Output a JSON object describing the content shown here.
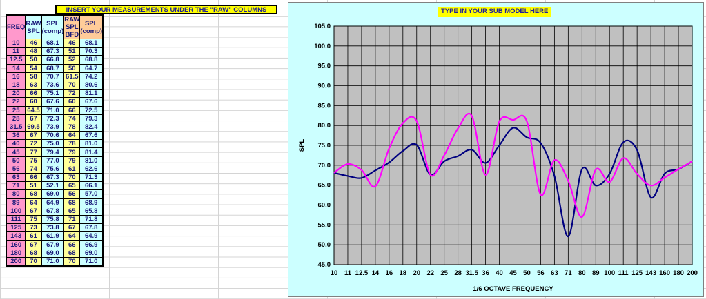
{
  "table": {
    "banner": "INSERT YOUR MEASUREMENTS UNDER THE \"RAW\" COLUMNS",
    "headers": [
      "FREQ",
      "RAW SPL",
      "SPL (comp)",
      "RAW SPL BFD",
      "SPL (comp)"
    ],
    "rows": [
      [
        "10",
        "46",
        "68.1",
        "46",
        "68.1"
      ],
      [
        "11",
        "48",
        "67.3",
        "51",
        "70.3"
      ],
      [
        "12.5",
        "50",
        "66.8",
        "52",
        "68.8"
      ],
      [
        "14",
        "54",
        "68.7",
        "50",
        "64.7"
      ],
      [
        "16",
        "58",
        "70.7",
        "61.5",
        "74.2"
      ],
      [
        "18",
        "63",
        "73.6",
        "70",
        "80.6"
      ],
      [
        "20",
        "66",
        "75.1",
        "72",
        "81.1"
      ],
      [
        "22",
        "60",
        "67.6",
        "60",
        "67.6"
      ],
      [
        "25",
        "64.5",
        "71.0",
        "66",
        "72.5"
      ],
      [
        "28",
        "67",
        "72.3",
        "74",
        "79.3"
      ],
      [
        "31.5",
        "69.5",
        "73.9",
        "78",
        "82.4"
      ],
      [
        "36",
        "67",
        "70.6",
        "64",
        "67.6"
      ],
      [
        "40",
        "72",
        "75.0",
        "78",
        "81.0"
      ],
      [
        "45",
        "77",
        "79.4",
        "79",
        "81.4"
      ],
      [
        "50",
        "75",
        "77.0",
        "79",
        "81.0"
      ],
      [
        "56",
        "74",
        "75.6",
        "61",
        "62.6"
      ],
      [
        "63",
        "66",
        "67.3",
        "70",
        "71.3"
      ],
      [
        "71",
        "51",
        "52.1",
        "65",
        "66.1"
      ],
      [
        "80",
        "68",
        "69.0",
        "56",
        "57.0"
      ],
      [
        "89",
        "64",
        "64.9",
        "68",
        "68.9"
      ],
      [
        "100",
        "67",
        "67.8",
        "65",
        "65.8"
      ],
      [
        "111",
        "75",
        "75.8",
        "71",
        "71.8"
      ],
      [
        "125",
        "73",
        "73.8",
        "67",
        "67.8"
      ],
      [
        "143",
        "61",
        "61.9",
        "64",
        "64.9"
      ],
      [
        "160",
        "67",
        "67.9",
        "66",
        "66.9"
      ],
      [
        "180",
        "68",
        "69.0",
        "68",
        "69.0"
      ],
      [
        "200",
        "70",
        "71.0",
        "70",
        "71.0"
      ]
    ]
  },
  "chart_data": {
    "type": "line",
    "title": "TYPE IN YOUR SUB MODEL HERE",
    "xlabel": "1/6 OCTAVE FREQUENCY",
    "ylabel": "SPL",
    "categories": [
      "10",
      "11",
      "12.5",
      "14",
      "16",
      "18",
      "20",
      "22",
      "25",
      "28",
      "31.5",
      "36",
      "40",
      "45",
      "50",
      "56",
      "63",
      "71",
      "80",
      "89",
      "100",
      "111",
      "125",
      "143",
      "160",
      "180",
      "200"
    ],
    "ylim": [
      45,
      105
    ],
    "yticks": [
      "45.0",
      "50.0",
      "55.0",
      "60.0",
      "65.0",
      "70.0",
      "75.0",
      "80.0",
      "85.0",
      "90.0",
      "95.0",
      "100.0",
      "105.0"
    ],
    "grid": true,
    "background": "#c0c0c0",
    "series": [
      {
        "color": "#000080",
        "values": [
          68.1,
          67.3,
          66.8,
          68.7,
          70.7,
          73.6,
          75.1,
          67.6,
          71.0,
          72.3,
          73.9,
          70.6,
          75.0,
          79.4,
          77.0,
          75.6,
          67.3,
          52.1,
          69.0,
          64.9,
          67.8,
          75.8,
          73.8,
          61.9,
          67.9,
          69.0,
          71.0
        ]
      },
      {
        "color": "#ff00ff",
        "values": [
          68.1,
          70.3,
          68.8,
          64.7,
          74.2,
          80.6,
          81.1,
          67.6,
          72.5,
          79.3,
          82.4,
          67.6,
          81.0,
          81.4,
          81.0,
          62.6,
          71.3,
          66.1,
          57.0,
          68.9,
          65.8,
          71.8,
          67.8,
          64.9,
          66.9,
          69.0,
          71.0
        ]
      }
    ]
  }
}
